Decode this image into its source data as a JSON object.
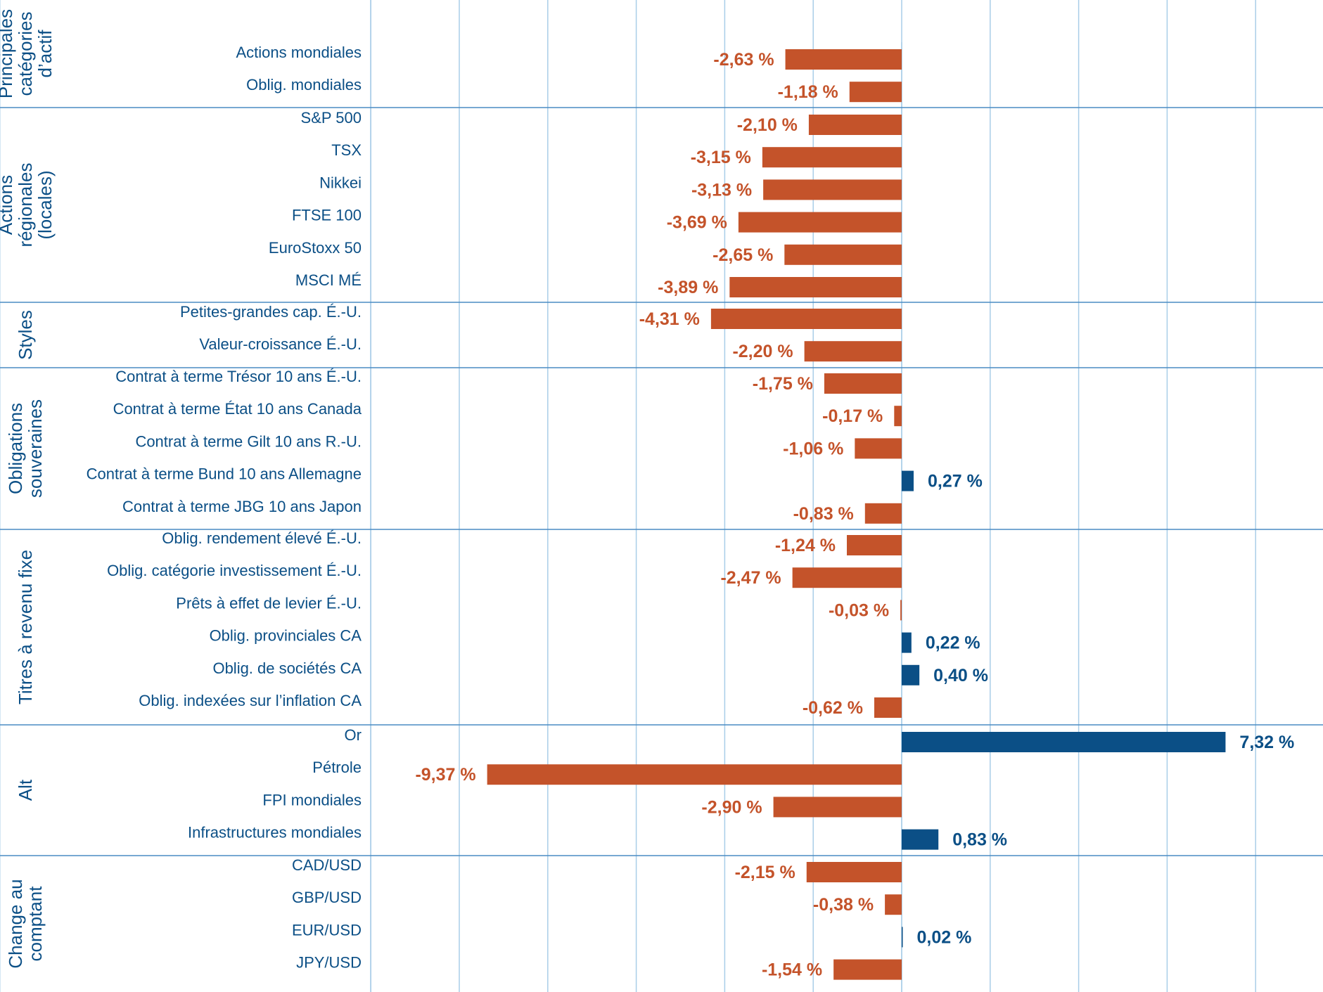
{
  "chart_data": {
    "type": "bar",
    "orientation": "horizontal",
    "xlim": [
      -12,
      10
    ],
    "colors": {
      "negative": "#c4532a",
      "positive": "#0b4f86",
      "grid": "#a9cde8",
      "separator": "#4a8cc4",
      "text": "#0b4f86"
    },
    "groups": [
      {
        "name": "Principales catégories d’actif",
        "lines": [
          "Principales",
          "catégories",
          "d’actif"
        ],
        "items": [
          {
            "label": "Actions mondiales",
            "value": -2.63,
            "display": "-2,63 %"
          },
          {
            "label": "Oblig. mondiales",
            "value": -1.18,
            "display": "-1,18 %"
          }
        ]
      },
      {
        "name": "Actions régionales (locales)",
        "lines": [
          "Actions",
          "régionales",
          "(locales)"
        ],
        "items": [
          {
            "label": "S&P 500",
            "value": -2.1,
            "display": "-2,10 %"
          },
          {
            "label": "TSX",
            "value": -3.15,
            "display": "-3,15 %"
          },
          {
            "label": "Nikkei",
            "value": -3.13,
            "display": "-3,13 %"
          },
          {
            "label": "FTSE 100",
            "value": -3.69,
            "display": "-3,69 %"
          },
          {
            "label": "EuroStoxx 50",
            "value": -2.65,
            "display": "-2,65 %"
          },
          {
            "label": "MSCI MÉ",
            "value": -3.89,
            "display": "-3,89 %"
          }
        ]
      },
      {
        "name": "Styles",
        "lines": [
          "Styles"
        ],
        "items": [
          {
            "label": "Petites-grandes cap. É.-U.",
            "value": -4.31,
            "display": "-4,31 %"
          },
          {
            "label": "Valeur-croissance É.-U.",
            "value": -2.2,
            "display": "-2,20 %"
          }
        ]
      },
      {
        "name": "Obligations souveraines",
        "lines": [
          "Obligations",
          "souveraines"
        ],
        "items": [
          {
            "label": "Contrat à terme Trésor 10 ans É.-U.",
            "value": -1.75,
            "display": "-1,75 %"
          },
          {
            "label": "Contrat à terme État 10 ans Canada",
            "value": -0.17,
            "display": "-0,17 %"
          },
          {
            "label": "Contrat à terme Gilt 10 ans R.-U.",
            "value": -1.06,
            "display": "-1,06 %"
          },
          {
            "label": "Contrat à terme Bund 10 ans Allemagne",
            "value": 0.27,
            "display": "0,27 %"
          },
          {
            "label": "Contrat à terme JBG 10 ans Japon",
            "value": -0.83,
            "display": "-0,83 %"
          }
        ]
      },
      {
        "name": "Titres à revenu fixe",
        "lines": [
          "Titres à revenu fixe"
        ],
        "items": [
          {
            "label": "Oblig. rendement élevé É.-U.",
            "value": -1.24,
            "display": "-1,24 %"
          },
          {
            "label": "Oblig. catégorie investissement É.-U.",
            "value": -2.47,
            "display": "-2,47 %"
          },
          {
            "label": "Prêts à effet de levier É.-U.",
            "value": -0.03,
            "display": "-0,03 %"
          },
          {
            "label": "Oblig. provinciales CA",
            "value": 0.22,
            "display": "0,22 %"
          },
          {
            "label": "Oblig. de sociétés CA",
            "value": 0.4,
            "display": "0,40 %"
          },
          {
            "label": "Oblig. indexées sur l’inflation CA",
            "value": -0.62,
            "display": "-0,62 %"
          }
        ]
      },
      {
        "name": "Alt",
        "lines": [
          "Alt"
        ],
        "items": [
          {
            "label": "Or",
            "value": 7.32,
            "display": "7,32 %"
          },
          {
            "label": "Pétrole",
            "value": -9.37,
            "display": "-9,37 %"
          },
          {
            "label": "FPI mondiales",
            "value": -2.9,
            "display": "-2,90 %"
          },
          {
            "label": "Infrastructures mondiales",
            "value": 0.83,
            "display": "0,83 %"
          }
        ]
      },
      {
        "name": "Change au comptant",
        "lines": [
          "Change au",
          "comptant"
        ],
        "items": [
          {
            "label": "CAD/USD",
            "value": -2.15,
            "display": "-2,15 %"
          },
          {
            "label": "GBP/USD",
            "value": -0.38,
            "display": "-0,38 %"
          },
          {
            "label": "EUR/USD",
            "value": 0.02,
            "display": "0,02 %"
          },
          {
            "label": "JPY/USD",
            "value": -1.54,
            "display": "-1,54 %"
          }
        ]
      }
    ]
  }
}
